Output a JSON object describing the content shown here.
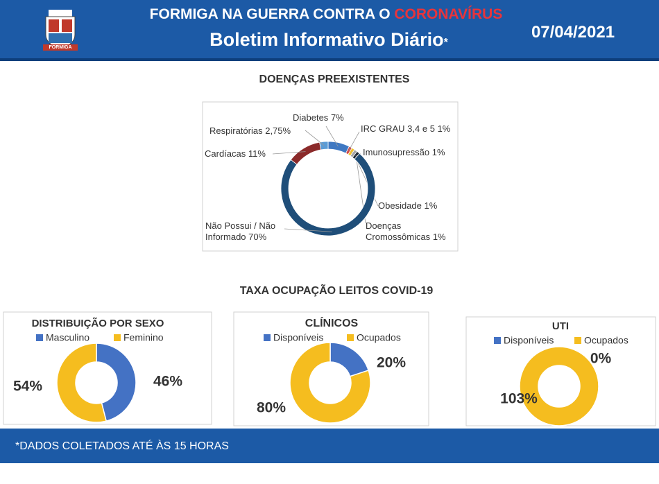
{
  "header": {
    "title_prefix": "FORMIGA NA GUERRA CONTRA O",
    "title_highlight": "CORONAVÍRUS",
    "subtitle": "Boletim Informativo Diário",
    "subtitle_mark": "*",
    "date": "07/04/2021",
    "logo_text": "FORMIGA"
  },
  "section_title": "TAXA OCUPAÇÃO LEITOS COVID-19",
  "footer": "*DADOS COLETADOS ATÉ ÀS 15 HORAS",
  "chart_data": [
    {
      "type": "donut",
      "title": "DOENÇAS PREEXISTENTES",
      "categories": [
        "Diabetes",
        "IRC GRAU 3,4 e 5",
        "Imunosupressão",
        "Obesidade",
        "Doenças Cromossômicas",
        "Não Possui / Não Informado",
        "Cardíacas",
        "Respiratórias"
      ],
      "values": [
        7,
        1,
        1,
        1,
        1,
        70,
        11,
        2.75
      ],
      "value_labels": [
        "7%",
        "1%",
        "1%",
        "1%",
        "1%",
        "70%",
        "11%",
        "2,75%"
      ],
      "colors": [
        "#3f78c2",
        "#cf4a4a",
        "#f2c12e",
        "#a6a6a6",
        "#222a35",
        "#1f4e79",
        "#8b2a2a",
        "#5b9bd5"
      ]
    },
    {
      "type": "donut",
      "title": "DISTRIBUIÇÃO POR SEXO",
      "categories": [
        "Masculino",
        "Feminino"
      ],
      "values": [
        46,
        54
      ],
      "value_labels": [
        "46%",
        "54%"
      ],
      "colors": [
        "#4472c4",
        "#f5bd1f"
      ]
    },
    {
      "type": "donut",
      "title": "CLÍNICOS",
      "categories": [
        "Disponíveis",
        "Ocupados"
      ],
      "values": [
        20,
        80
      ],
      "value_labels": [
        "20%",
        "80%"
      ],
      "colors": [
        "#4472c4",
        "#f5bd1f"
      ]
    },
    {
      "type": "donut",
      "title": "UTI",
      "categories": [
        "Disponíveis",
        "Ocupados"
      ],
      "values": [
        0,
        103
      ],
      "value_labels": [
        "0%",
        "103%"
      ],
      "colors": [
        "#4472c4",
        "#f5bd1f"
      ]
    }
  ]
}
